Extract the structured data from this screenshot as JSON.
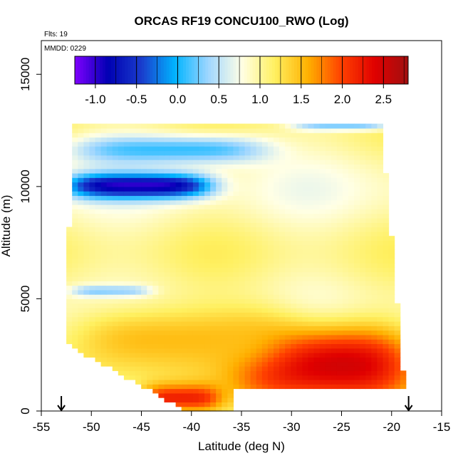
{
  "chart_data": {
    "type": "heatmap",
    "title": "ORCAS RF19 CONCU100_RWO (Log)",
    "annotations": {
      "flights": "Flts: 19",
      "date": "MMDD: 0229"
    },
    "xlabel": "Latitude (deg N)",
    "ylabel": "Altitude (m)",
    "xlim": [
      -55,
      -15
    ],
    "ylim": [
      0,
      16500
    ],
    "x_ticks": [
      -55,
      -50,
      -45,
      -40,
      -35,
      -30,
      -25,
      -20,
      -15
    ],
    "x_tick_labels": [
      "-55",
      "-50",
      "-45",
      "-40",
      "-35",
      "-30",
      "-25",
      "-20",
      "-15"
    ],
    "y_ticks": [
      0,
      5000,
      10000,
      15000
    ],
    "y_tick_labels": [
      "0",
      "5000",
      "10000",
      "15000"
    ],
    "colorbar": {
      "min": -1.25,
      "max": 2.8,
      "ticks": [
        -1.0,
        -0.5,
        0.0,
        0.5,
        1.0,
        1.5,
        2.0,
        2.5
      ],
      "tick_labels": [
        "-1.0",
        "-0.5",
        "0.0",
        "0.5",
        "1.0",
        "1.5",
        "2.0",
        "2.5"
      ],
      "colors": [
        "#7f00ff",
        "#0000b3",
        "#1a3ccc",
        "#00b4ff",
        "#9fd6ff",
        "#ffffe6",
        "#fff060",
        "#ffb000",
        "#ff4000",
        "#e00000",
        "#a01010"
      ]
    },
    "field": {
      "lat_range": [
        -52.5,
        -18.0
      ],
      "alt_range": [
        0,
        12800
      ],
      "base_value": 0.95,
      "features": [
        {
          "lat": [
            -52.5,
            -38
          ],
          "alt": [
            9500,
            10600
          ],
          "value": -1.0
        },
        {
          "lat": [
            -52,
            -32
          ],
          "alt": [
            11000,
            12300
          ],
          "value": 0.1
        },
        {
          "lat": [
            -52,
            -44
          ],
          "alt": [
            5100,
            5600
          ],
          "value": 0.1
        },
        {
          "lat": [
            -30,
            -20
          ],
          "alt": [
            12500,
            12900
          ],
          "value": 0.3
        },
        {
          "lat": [
            -36,
            -18
          ],
          "alt": [
            300,
            3800
          ],
          "value": 2.5
        },
        {
          "lat": [
            -52.5,
            -30
          ],
          "alt": [
            1500,
            4800
          ],
          "value": 1.5
        },
        {
          "lat": [
            -45,
            -37
          ],
          "alt": [
            0,
            1200
          ],
          "value": 2.2
        }
      ]
    },
    "flight_markers_lat": [
      -53.0,
      -18.3
    ]
  }
}
